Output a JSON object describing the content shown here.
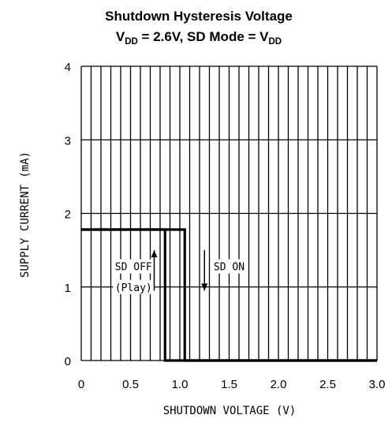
{
  "chart_data": {
    "type": "line",
    "title": "Shutdown Hysteresis Voltage",
    "subtitle_parts": {
      "v1": "V",
      "v1_sub": "DD",
      "mid": " = 2.6V, SD Mode = V",
      "v2_sub": "DD"
    },
    "xlabel": "SHUTDOWN VOLTAGE (V)",
    "ylabel": "SUPPLY CURRENT (mA)",
    "xlim": [
      0,
      3.0
    ],
    "ylim": [
      0,
      4
    ],
    "x_ticks": [
      0,
      0.5,
      1.0,
      1.5,
      2.0,
      2.5,
      3.0
    ],
    "x_tick_labels": [
      "0",
      "0.5",
      "1.0",
      "1.5",
      "2.0",
      "2.5",
      "3.0"
    ],
    "y_ticks": [
      0,
      1,
      2,
      3,
      4
    ],
    "y_tick_labels": [
      "0",
      "1",
      "2",
      "3",
      "4"
    ],
    "grid": true,
    "minor_x_step": 0.1,
    "series": [
      {
        "x": [
          0,
          0.85,
          0.85,
          3.0
        ],
        "y": [
          1.78,
          1.78,
          0,
          0
        ]
      },
      {
        "x": [
          0,
          1.05,
          1.05,
          3.0
        ],
        "y": [
          1.78,
          1.78,
          0,
          0
        ]
      }
    ],
    "annotations": [
      {
        "text": "SD OFF",
        "x": 0.53,
        "y": 1.28
      },
      {
        "text": "(Play)",
        "x": 0.53,
        "y": 1.0
      },
      {
        "text": "SD ON",
        "x": 1.5,
        "y": 1.28
      }
    ],
    "arrows": [
      {
        "direction": "up",
        "x": 0.74,
        "y_from": 0.95,
        "y_to": 1.5
      },
      {
        "direction": "down",
        "x": 1.25,
        "y_from": 1.5,
        "y_to": 0.95
      }
    ]
  }
}
